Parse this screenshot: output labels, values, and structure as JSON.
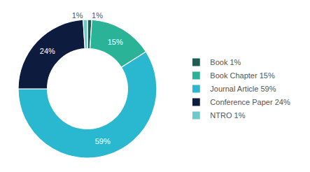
{
  "chart_data": {
    "type": "pie",
    "categories": [
      "Book 1%",
      "Book Chapter 15%",
      "Journal Article 59%",
      "Conference Paper 24%",
      "NTRO 1%"
    ],
    "values": [
      1,
      15,
      59,
      24,
      1
    ],
    "value_labels": [
      "1%",
      "15%",
      "59%",
      "24%",
      "1%"
    ],
    "colors": [
      "#1c5f52",
      "#2ab396",
      "#29b8d0",
      "#0d1b3e",
      "#6ec9cb"
    ],
    "data_labels": true,
    "legend": "right"
  }
}
